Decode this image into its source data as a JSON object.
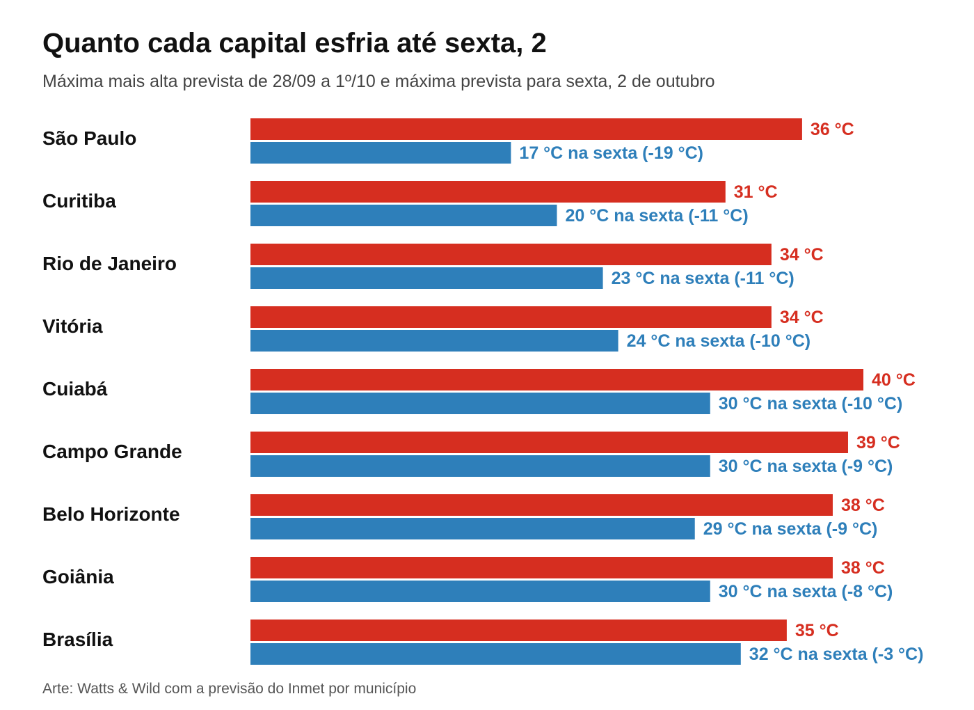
{
  "colors": {
    "max": "#d62e20",
    "friday": "#2e7fba"
  },
  "chart_data": {
    "type": "bar",
    "orientation": "horizontal",
    "title": "Quanto cada capital esfria até sexta, 2",
    "subtitle": "Máxima mais alta prevista de 28/09 a 1º/10 e máxima prevista para sexta, 2 de outubro",
    "footer": "Arte: Watts & Wild com a previsão do Inmet por município",
    "xlim": [
      0,
      40
    ],
    "grid": false,
    "legend": "none",
    "categories": [
      "São Paulo",
      "Curitiba",
      "Rio de Janeiro",
      "Vitória",
      "Cuiabá",
      "Campo Grande",
      "Belo Horizonte",
      "Goiânia",
      "Brasília"
    ],
    "series": [
      {
        "values": [
          36,
          31,
          34,
          34,
          40,
          39,
          38,
          38,
          35
        ],
        "labels": [
          "36 °C",
          "31 °C",
          "34 °C",
          "34 °C",
          "40 °C",
          "39 °C",
          "38 °C",
          "38 °C",
          "35 °C"
        ]
      },
      {
        "values": [
          17,
          20,
          23,
          24,
          30,
          30,
          29,
          30,
          32
        ],
        "labels": [
          "17 °C na sexta (-19 °C)",
          "20 °C na sexta (-11 °C)",
          "23 °C na sexta (-11 °C)",
          "24 °C na sexta (-10 °C)",
          "30 °C na sexta (-10 °C)",
          "30 °C na sexta (-9 °C)",
          "29 °C na sexta (-9 °C)",
          "30 °C na sexta (-8 °C)",
          "32 °C na sexta (-3 °C)"
        ]
      }
    ]
  }
}
